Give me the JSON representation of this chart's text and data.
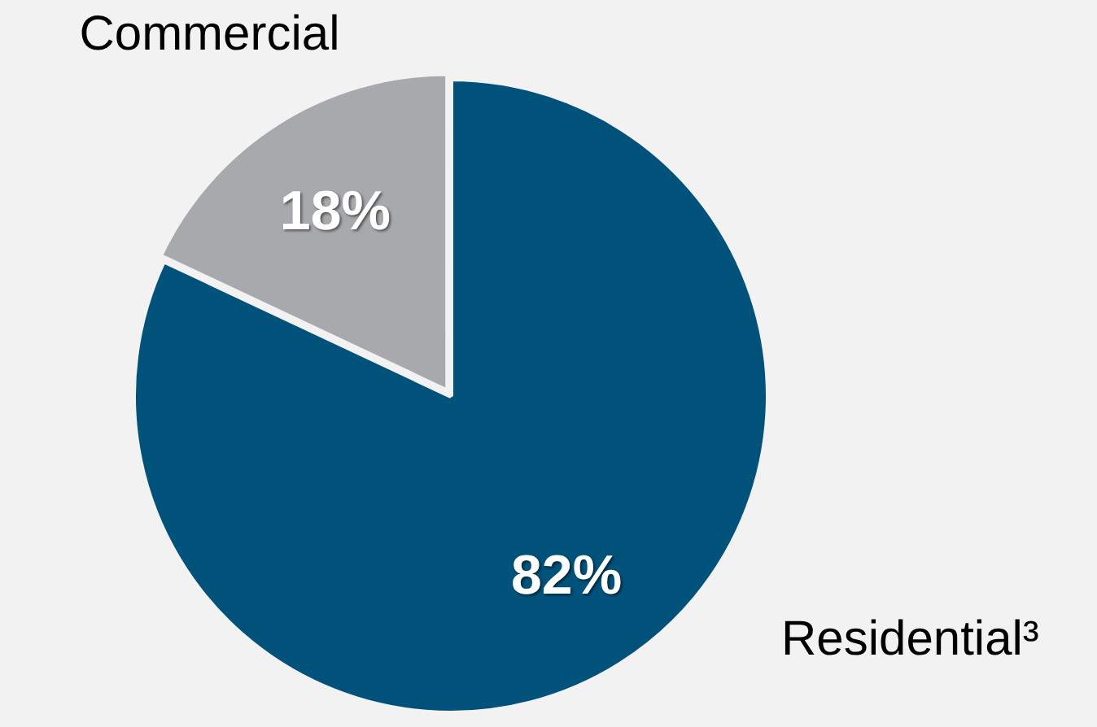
{
  "chart_data": {
    "type": "pie",
    "categories": [
      "Residential³",
      "Commercial"
    ],
    "values": [
      82,
      18
    ],
    "colors": [
      "#00527a",
      "#a7a9ac"
    ],
    "value_labels": [
      "82%",
      "18%"
    ],
    "legend": false
  }
}
